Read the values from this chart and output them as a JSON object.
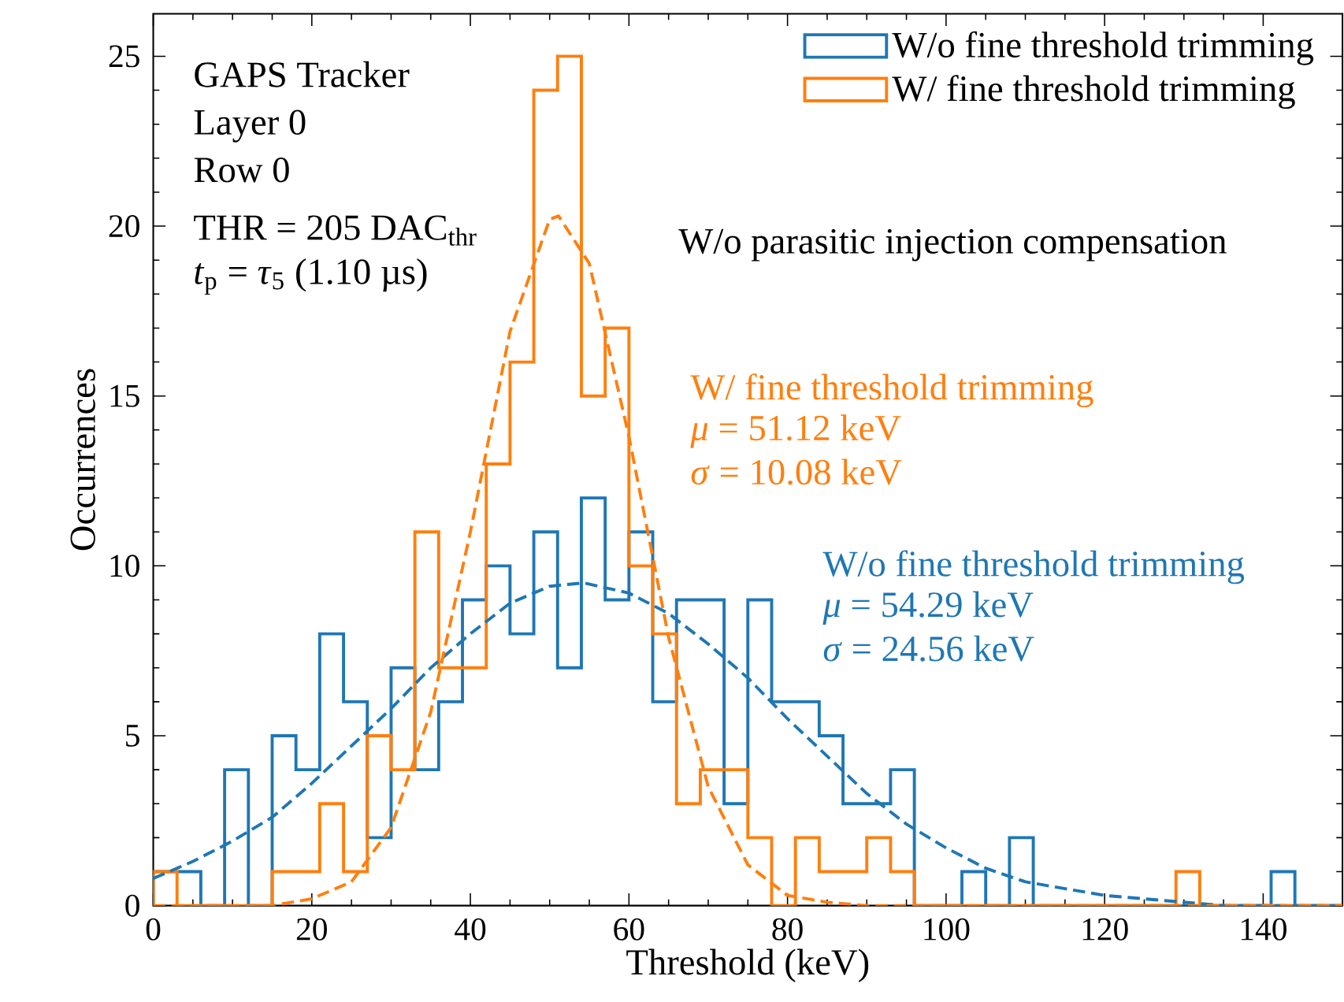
{
  "chart_data": {
    "type": "histogram",
    "xlabel": "Threshold (keV)",
    "ylabel": "Occurrences",
    "legend": "top right",
    "xlim": [
      0,
      150
    ],
    "ylim": [
      0,
      26.25
    ],
    "xticks": [
      0,
      20,
      40,
      60,
      80,
      100,
      120,
      140
    ],
    "yticks": [
      0,
      5,
      10,
      15,
      20,
      25
    ],
    "bins": [
      0,
      3,
      6,
      9,
      12,
      15,
      18,
      21,
      24,
      27,
      30,
      33,
      36,
      39,
      42,
      45,
      48,
      51,
      54,
      57,
      60,
      63,
      66,
      69,
      72,
      75,
      78,
      81,
      84,
      87,
      90,
      93,
      96,
      99,
      102,
      105,
      108,
      111,
      114,
      117,
      120,
      123,
      126,
      129,
      132,
      135,
      138,
      141,
      144,
      147,
      150
    ],
    "annotations": [
      "GAPS Tracker",
      "Layer 0",
      "Row 0",
      "THR = 205 DAC$_{thr}$",
      "*t*$_{p}$ = *τ*$_{5}$ (1.10 µs)",
      "W/o parasitic injection compensation",
      "W/ fine threshold trimming",
      "*μ* = 51.12 keV",
      "*σ* = 10.08 keV",
      "W/o fine threshold trimming",
      "*μ* = 54.29 keV",
      "*σ* = 24.56 keV"
    ],
    "series": [
      {
        "name": "W/o fine threshold trimming",
        "color": "#1f77b4",
        "values": [
          1,
          1,
          0,
          4,
          0,
          5,
          4,
          8,
          6,
          2,
          7,
          4,
          6,
          9,
          10,
          8,
          11,
          7,
          12,
          9,
          11,
          6,
          9,
          9,
          3,
          9,
          6,
          6,
          5,
          3,
          3,
          4,
          0,
          0,
          1,
          0,
          2,
          0,
          0,
          0,
          0,
          0,
          0,
          0,
          0,
          0,
          0,
          1,
          0,
          0
        ]
      },
      {
        "name": "W/ fine threshold trimming",
        "color": "#ff7f0e",
        "values": [
          1,
          0,
          0,
          0,
          0,
          1,
          1,
          3,
          1,
          5,
          4,
          11,
          7,
          7,
          13,
          16,
          24,
          25,
          15,
          17,
          10,
          8,
          3,
          4,
          4,
          2,
          0,
          2,
          1,
          1,
          2,
          1,
          0,
          0,
          0,
          0,
          0,
          0,
          0,
          0,
          0,
          0,
          0,
          1,
          0,
          0,
          0,
          0,
          0,
          0
        ]
      },
      {
        "type": "line",
        "color": "#1f77b4",
        "line_style": "dashed",
        "x": [
          0,
          5,
          10,
          15,
          20,
          25,
          30,
          35,
          40,
          45,
          50,
          54.29,
          60,
          65,
          70,
          75,
          80,
          85,
          90,
          95,
          100,
          105,
          110,
          115,
          120,
          125,
          130,
          135,
          140,
          145,
          150
        ],
        "values": [
          0.8,
          1.3,
          1.9,
          2.6,
          3.6,
          4.7,
          5.8,
          7.0,
          8.0,
          8.9,
          9.4,
          9.5,
          9.2,
          8.6,
          7.7,
          6.7,
          5.5,
          4.4,
          3.3,
          2.4,
          1.7,
          1.1,
          0.7,
          0.5,
          0.3,
          0.2,
          0.1,
          0.0,
          0.0,
          0.0,
          0.0
        ]
      },
      {
        "type": "line",
        "color": "#ff7f0e",
        "line_style": "dashed",
        "x": [
          0,
          5,
          10,
          15,
          20,
          25,
          30,
          35,
          40,
          45,
          50,
          51.12,
          55,
          60,
          65,
          70,
          75,
          80,
          85,
          90,
          95,
          100,
          110,
          120,
          130,
          140,
          150
        ],
        "values": [
          0.0,
          0.0,
          0.0,
          0.0,
          0.2,
          0.7,
          2.3,
          5.7,
          11.0,
          16.9,
          20.2,
          20.3,
          18.9,
          13.8,
          7.9,
          3.5,
          1.2,
          0.3,
          0.1,
          0.0,
          0.0,
          0.0,
          0.0,
          0.0,
          0.0,
          0.0,
          0.0
        ]
      }
    ]
  }
}
